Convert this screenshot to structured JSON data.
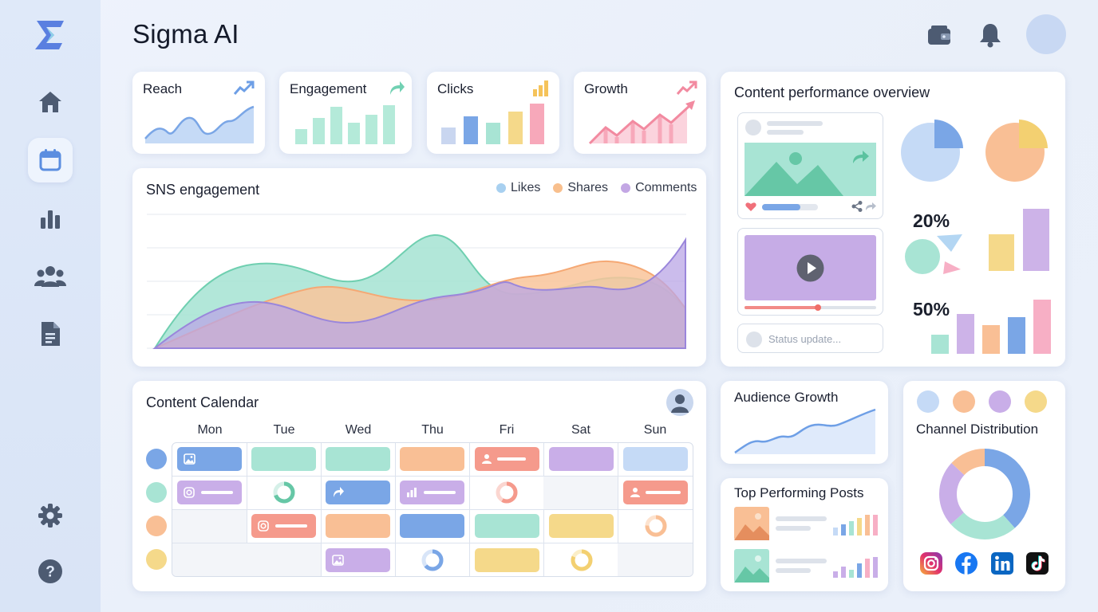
{
  "app": {
    "title": "Sigma AI"
  },
  "sidebar": {
    "items": [
      {
        "icon": "home-icon"
      },
      {
        "icon": "calendar-icon",
        "active": true
      },
      {
        "icon": "bar-chart-icon"
      },
      {
        "icon": "users-icon"
      },
      {
        "icon": "document-icon"
      },
      {
        "icon": "gear-icon"
      },
      {
        "icon": "help-icon"
      }
    ]
  },
  "header": {
    "icons": [
      "wallet-icon",
      "bell-icon",
      "avatar"
    ]
  },
  "kpis": [
    {
      "label": "Reach"
    },
    {
      "label": "Engagement"
    },
    {
      "label": "Clicks"
    },
    {
      "label": "Growth"
    }
  ],
  "sns": {
    "title": "SNS engagement",
    "legend": [
      {
        "label": "Likes",
        "color": "#a8d0f0"
      },
      {
        "label": "Shares",
        "color": "#f8bf8d"
      },
      {
        "label": "Comments",
        "color": "#c3a7e4"
      }
    ]
  },
  "performance": {
    "title": "Content performance overview",
    "status_placeholder": "Status update...",
    "pct_a": "20%",
    "pct_b": "50%"
  },
  "calendar": {
    "title": "Content Calendar",
    "days": [
      "Mon",
      "Tue",
      "Wed",
      "Thu",
      "Fri",
      "Sat",
      "Sun"
    ]
  },
  "audience": {
    "title": "Audience Growth"
  },
  "top_posts": {
    "title": "Top Performing Posts"
  },
  "channels": {
    "title": "Channel Distribution",
    "platforms": [
      "instagram-icon",
      "facebook-icon",
      "linkedin-icon",
      "tiktok-icon"
    ]
  },
  "colors": {
    "blue": "#7aa6e6",
    "mint": "#a8e4d4",
    "peach": "#f9bf95",
    "lavender": "#c9aee8",
    "yellow": "#f5d98a",
    "pink": "#f7afc5",
    "coral": "#f59a8c"
  }
}
